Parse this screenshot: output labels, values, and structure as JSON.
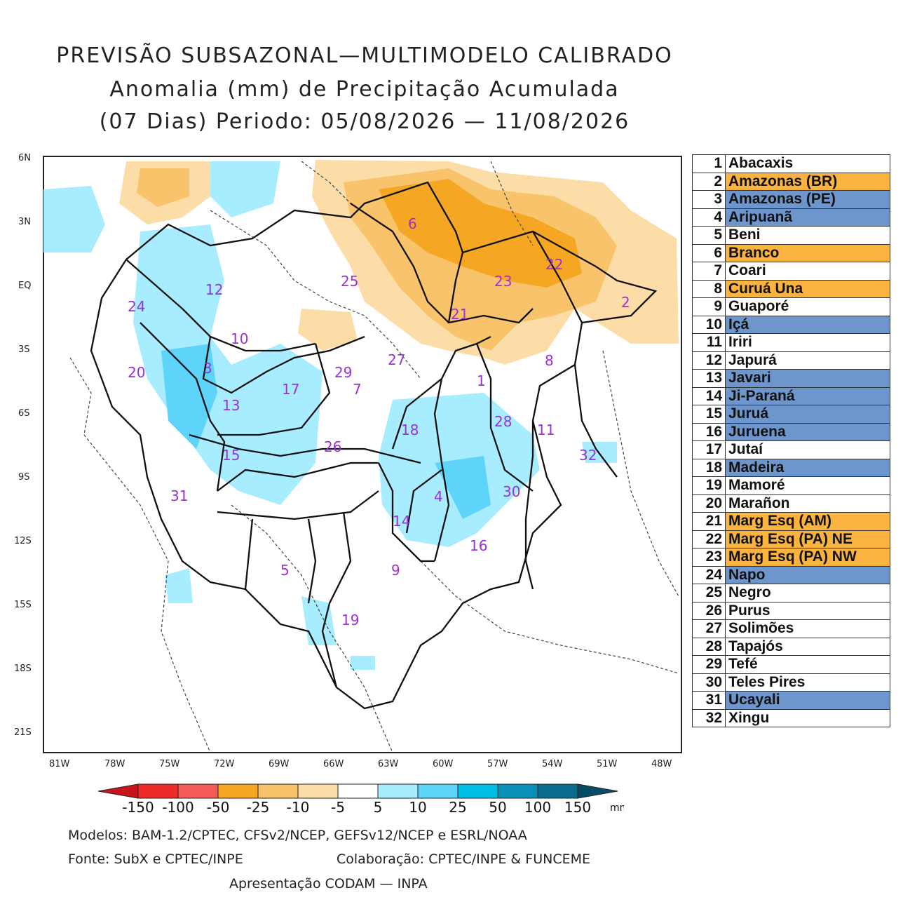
{
  "title": {
    "line1": "PREVISÃO SUBSAZONAL—MULTIMODELO CALIBRADO",
    "line2": "Anomalia (mm) de Precipitação Acumulada",
    "line3": "(07 Dias) Periodo: 05/08/2026 — 11/08/2026"
  },
  "map": {
    "lat_labels": [
      "6N",
      "3N",
      "EQ",
      "3S",
      "6S",
      "9S",
      "12S",
      "15S",
      "18S",
      "21S"
    ],
    "lon_labels": [
      "81W",
      "78W",
      "75W",
      "72W",
      "69W",
      "66W",
      "63W",
      "60W",
      "57W",
      "54W",
      "51W",
      "48W"
    ],
    "basin_numbers": [
      "1",
      "2",
      "3",
      "4",
      "5",
      "6",
      "7",
      "8",
      "9",
      "10",
      "11",
      "12",
      "13",
      "14",
      "15",
      "16",
      "17",
      "18",
      "19",
      "20",
      "21",
      "22",
      "23",
      "24",
      "25",
      "26",
      "27",
      "28",
      "29",
      "30",
      "31",
      "32"
    ]
  },
  "basins": [
    {
      "n": "1",
      "name": "Abacaxis",
      "cls": "none"
    },
    {
      "n": "2",
      "name": "Amazonas (BR)",
      "cls": "dry"
    },
    {
      "n": "3",
      "name": "Amazonas (PE)",
      "cls": "wet"
    },
    {
      "n": "4",
      "name": "Aripuanã",
      "cls": "wet"
    },
    {
      "n": "5",
      "name": "Beni",
      "cls": "none"
    },
    {
      "n": "6",
      "name": "Branco",
      "cls": "dry"
    },
    {
      "n": "7",
      "name": "Coari",
      "cls": "none"
    },
    {
      "n": "8",
      "name": "Curuá Una",
      "cls": "dry"
    },
    {
      "n": "9",
      "name": "Guaporé",
      "cls": "none"
    },
    {
      "n": "10",
      "name": "Içá",
      "cls": "wet"
    },
    {
      "n": "11",
      "name": "Iriri",
      "cls": "none"
    },
    {
      "n": "12",
      "name": "Japurá",
      "cls": "none"
    },
    {
      "n": "13",
      "name": "Javari",
      "cls": "wet"
    },
    {
      "n": "14",
      "name": "Ji-Paraná",
      "cls": "wet"
    },
    {
      "n": "15",
      "name": "Juruá",
      "cls": "wet"
    },
    {
      "n": "16",
      "name": "Juruena",
      "cls": "wet"
    },
    {
      "n": "17",
      "name": "Jutaí",
      "cls": "none"
    },
    {
      "n": "18",
      "name": "Madeira",
      "cls": "wet"
    },
    {
      "n": "19",
      "name": "Mamoré",
      "cls": "none"
    },
    {
      "n": "20",
      "name": "Marañon",
      "cls": "none"
    },
    {
      "n": "21",
      "name": "Marg Esq (AM)",
      "cls": "dry"
    },
    {
      "n": "22",
      "name": "Marg Esq (PA) NE",
      "cls": "dry"
    },
    {
      "n": "23",
      "name": "Marg Esq (PA) NW",
      "cls": "dry"
    },
    {
      "n": "24",
      "name": "Napo",
      "cls": "wet"
    },
    {
      "n": "25",
      "name": "Negro",
      "cls": "none"
    },
    {
      "n": "26",
      "name": "Purus",
      "cls": "none"
    },
    {
      "n": "27",
      "name": "Solimões",
      "cls": "none"
    },
    {
      "n": "28",
      "name": "Tapajós",
      "cls": "none"
    },
    {
      "n": "29",
      "name": "Tefé",
      "cls": "none"
    },
    {
      "n": "30",
      "name": "Teles Pires",
      "cls": "none"
    },
    {
      "n": "31",
      "name": "Ucayali",
      "cls": "wet"
    },
    {
      "n": "32",
      "name": "Xingu",
      "cls": "none"
    }
  ],
  "legend_colors": {
    "dry": "#fbb33f",
    "wet": "#6d96cc",
    "none": "#ffffff"
  },
  "colorbar": {
    "labels": [
      "-150",
      "-100",
      "-50",
      "-25",
      "-10",
      "-5",
      "5",
      "10",
      "25",
      "50",
      "100",
      "150"
    ],
    "unit": "mm",
    "colors": [
      "#c8141a",
      "#ee2b2b",
      "#f45c5c",
      "#f5a623",
      "#f8c36b",
      "#fcdca7",
      "#ffffff",
      "#a8ecff",
      "#5fd4fa",
      "#00bde6",
      "#0a8fb8",
      "#0b6c8e",
      "#084b66"
    ]
  },
  "footer": {
    "line1": "Modelos: BAM-1.2/CPTEC, CFSv2/NCEP, GEFSv12/NCEP e ESRL/NOAA",
    "line2a": "Fonte: SubX e CPTEC/INPE",
    "line2b": "Colaboração: CPTEC/INPE & FUNCEME",
    "line3": "Apresentação CODAM — INPA"
  }
}
